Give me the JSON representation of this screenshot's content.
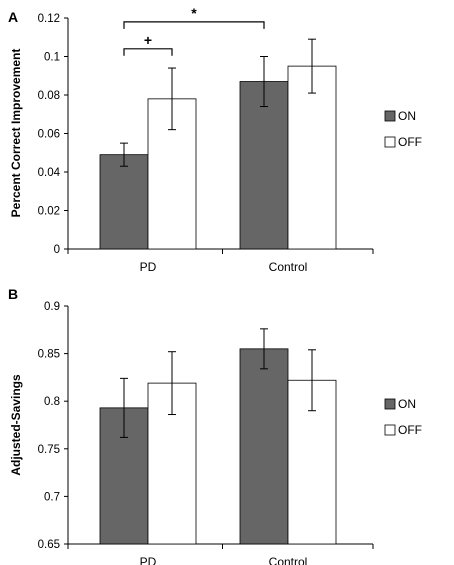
{
  "chart_data": [
    {
      "panel": "A",
      "type": "bar",
      "ylabel": "Percent Correct Improvement",
      "categories": [
        "PD",
        "Control"
      ],
      "ylim": [
        0,
        0.12
      ],
      "yticks": [
        0,
        0.02,
        0.04,
        0.06,
        0.08,
        0.1,
        0.12
      ],
      "ytick_labels": [
        "0",
        "0.02",
        "0.04",
        "0.06",
        "0.08",
        "0.1",
        "0.12"
      ],
      "series": [
        {
          "name": "ON",
          "color": "#666666",
          "values": [
            0.049,
            0.087
          ],
          "errors": [
            0.006,
            0.013
          ]
        },
        {
          "name": "OFF",
          "color": "#ffffff",
          "values": [
            0.078,
            0.095
          ],
          "errors": [
            0.016,
            0.014
          ]
        }
      ],
      "annotations": [
        {
          "text": "+",
          "from": {
            "category": 0,
            "series": 0
          },
          "to": {
            "category": 0,
            "series": 1
          },
          "level": 0.104
        },
        {
          "text": "*",
          "from": {
            "category": 0,
            "series": 0
          },
          "to": {
            "category": 1,
            "series": 0
          },
          "level": 0.118
        }
      ]
    },
    {
      "panel": "B",
      "type": "bar",
      "ylabel": "Adjusted-Savings",
      "categories": [
        "PD",
        "Control"
      ],
      "ylim": [
        0.65,
        0.9
      ],
      "yticks": [
        0.65,
        0.7,
        0.75,
        0.8,
        0.85,
        0.9
      ],
      "ytick_labels": [
        "0.65",
        "0.7",
        "0.75",
        "0.8",
        "0.85",
        "0.9"
      ],
      "series": [
        {
          "name": "ON",
          "color": "#666666",
          "values": [
            0.793,
            0.855
          ],
          "errors": [
            0.031,
            0.021
          ]
        },
        {
          "name": "OFF",
          "color": "#ffffff",
          "values": [
            0.819,
            0.822
          ],
          "errors": [
            0.033,
            0.032
          ]
        }
      ],
      "annotations": []
    }
  ]
}
